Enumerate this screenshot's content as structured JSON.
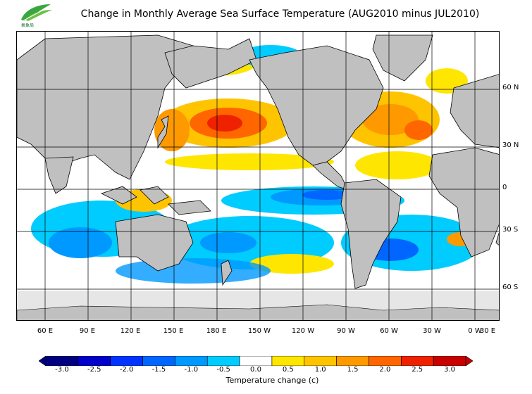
{
  "title": "Change in Monthly Average Sea Surface Temperature (AUG2010 minus JUL2010)",
  "logo": {
    "icon": "leaf-logo-icon",
    "text": "氣象局"
  },
  "map": {
    "lat_labels": [
      "60 N",
      "30 N",
      "0",
      "30 S",
      "60 S"
    ],
    "lon_labels": [
      "60 E",
      "90 E",
      "120 E",
      "150 E",
      "180 E",
      "150 W",
      "120 W",
      "90 W",
      "60 W",
      "30 W",
      "0 W",
      "30 E"
    ],
    "ocean_fill": "#ffffff",
    "land_fill": "#c0c0c0",
    "ice_fill": "#e6e6e6"
  },
  "colorbar": {
    "label": "Temperature change  (c)",
    "ticks": [
      "-3.0",
      "-2.5",
      "-2.0",
      "-1.5",
      "-1.0",
      "-0.5",
      "0.0",
      "0.5",
      "1.0",
      "1.5",
      "2.0",
      "2.5",
      "3.0"
    ],
    "colors": [
      "#000080",
      "#0000c8",
      "#0033ff",
      "#0066ff",
      "#0099ff",
      "#00ccff",
      "#ffffff",
      "#ffe600",
      "#ffc400",
      "#ff9900",
      "#ff6600",
      "#ee2200",
      "#c80000"
    ]
  }
}
